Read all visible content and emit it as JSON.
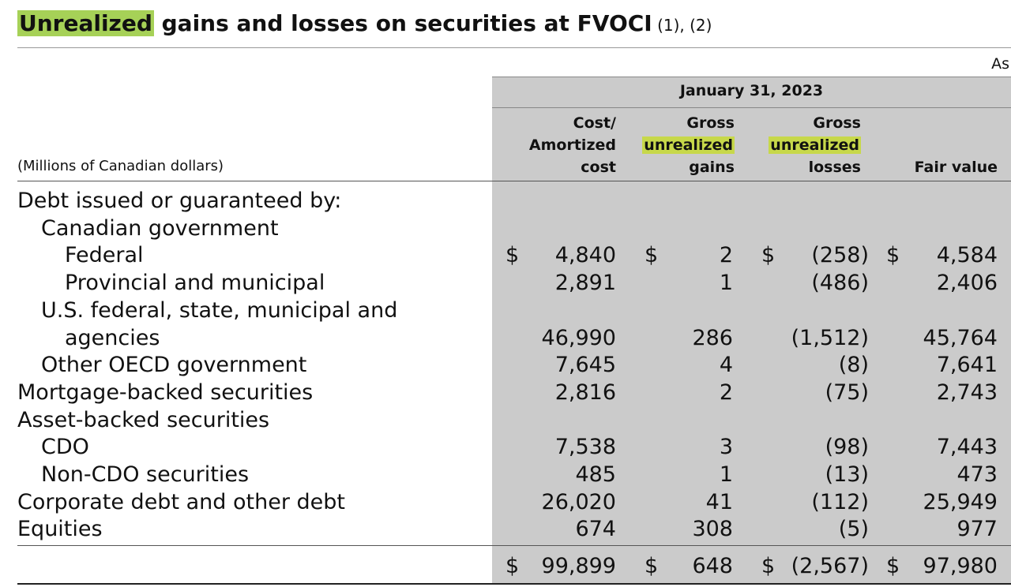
{
  "title": {
    "highlight": "Unrealized",
    "rest": " gains and losses on securities at FVOCI",
    "footnotes": " (1), (2)"
  },
  "as_of": "As",
  "date": "January 31, 2023",
  "unit_label": "(Millions of Canadian dollars)",
  "columns": [
    {
      "line1": "Cost/",
      "line2": "Amortized",
      "line3": "cost"
    },
    {
      "line1": "Gross",
      "line2": "unrealized",
      "line3": "gains"
    },
    {
      "line1": "Gross",
      "line2": "unrealized",
      "line3": "losses"
    },
    {
      "line1": "",
      "line2": "",
      "line3": "Fair value"
    }
  ],
  "rows": [
    {
      "label": "Debt issued or guaranteed by:",
      "indent": 0,
      "cost": "",
      "gains": "",
      "losses": "",
      "fair": ""
    },
    {
      "label": "Canadian government",
      "indent": 1,
      "cost": "",
      "gains": "",
      "losses": "",
      "fair": ""
    },
    {
      "label": "Federal",
      "indent": 2,
      "cost": "4,840",
      "gains": "2",
      "losses": "(258)",
      "fair": "4,584",
      "currency": "$"
    },
    {
      "label": "Provincial and municipal",
      "indent": 2,
      "cost": "2,891",
      "gains": "1",
      "losses": "(486)",
      "fair": "2,406"
    },
    {
      "label": "U.S. federal, state, municipal and",
      "indent": 1,
      "cost": "",
      "gains": "",
      "losses": "",
      "fair": ""
    },
    {
      "label": "agencies",
      "indent": 2,
      "cost": "46,990",
      "gains": "286",
      "losses": "(1,512)",
      "fair": "45,764"
    },
    {
      "label": "Other OECD government",
      "indent": 1,
      "cost": "7,645",
      "gains": "4",
      "losses": "(8)",
      "fair": "7,641"
    },
    {
      "label": "Mortgage-backed securities",
      "indent": 0,
      "cost": "2,816",
      "gains": "2",
      "losses": "(75)",
      "fair": "2,743"
    },
    {
      "label": "Asset-backed securities",
      "indent": 0,
      "cost": "",
      "gains": "",
      "losses": "",
      "fair": ""
    },
    {
      "label": "CDO",
      "indent": 1,
      "cost": "7,538",
      "gains": "3",
      "losses": "(98)",
      "fair": "7,443"
    },
    {
      "label": "Non-CDO securities",
      "indent": 1,
      "cost": "485",
      "gains": "1",
      "losses": "(13)",
      "fair": "473"
    },
    {
      "label": "Corporate debt and other debt",
      "indent": 0,
      "cost": "26,020",
      "gains": "41",
      "losses": "(112)",
      "fair": "25,949"
    },
    {
      "label": "Equities",
      "indent": 0,
      "cost": "674",
      "gains": "308",
      "losses": "(5)",
      "fair": "977"
    }
  ],
  "total": {
    "currency": "$",
    "cost": "99,899",
    "gains": "648",
    "losses": "(2,567)",
    "fair": "97,980"
  }
}
